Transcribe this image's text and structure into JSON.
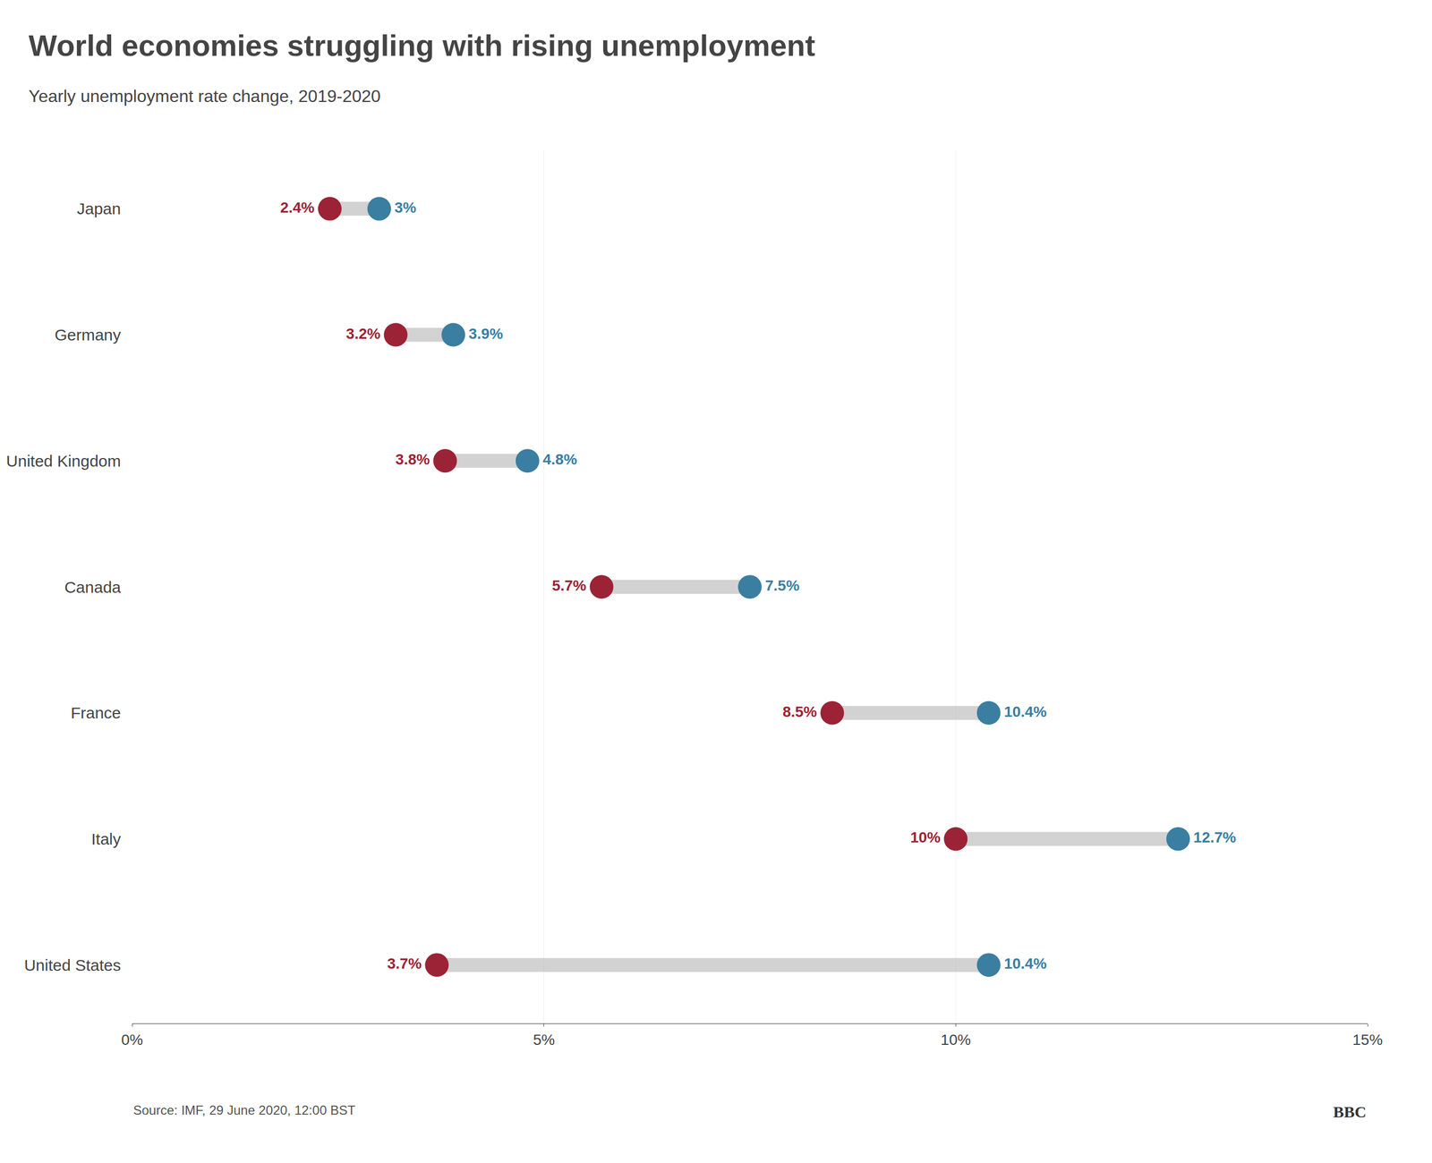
{
  "chart_data": {
    "type": "dumbbell",
    "title": "World economies struggling with rising unemployment",
    "subtitle": "Yearly unemployment rate change, 2019-2020",
    "annotations": [
      "Source: IMF, 29 June 2020, 12:00 BST",
      "BBC"
    ],
    "categories": [
      "Japan",
      "Germany",
      "United Kingdom",
      "Canada",
      "France",
      "Italy",
      "United States"
    ],
    "series": [
      {
        "color": "#9B2335",
        "values": [
          2.4,
          3.2,
          3.8,
          5.7,
          8.5,
          10.0,
          3.7
        ],
        "value_labels": [
          "2.4%",
          "3.2%",
          "3.8%",
          "5.7%",
          "8.5%",
          "10%",
          "3.7%"
        ]
      },
      {
        "color": "#3A7EA1",
        "values": [
          3.0,
          3.9,
          4.8,
          7.5,
          10.4,
          12.7,
          10.4
        ],
        "value_labels": [
          "3%",
          "3.9%",
          "4.8%",
          "7.5%",
          "10.4%",
          "12.7%",
          "10.4%"
        ]
      }
    ],
    "orientation": "horizontal",
    "xlim": [
      0,
      15
    ],
    "xticks": [
      {
        "value": 0,
        "label": "0%"
      },
      {
        "value": 5,
        "label": "5%"
      },
      {
        "value": 10,
        "label": "10%"
      },
      {
        "value": 15,
        "label": "15%"
      }
    ],
    "grid": true,
    "data_labels": true
  }
}
